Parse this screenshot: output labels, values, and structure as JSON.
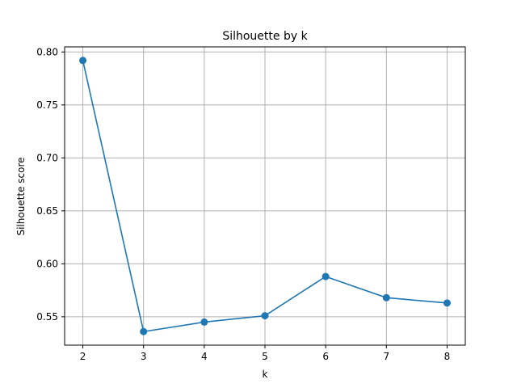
{
  "chart_data": {
    "type": "line",
    "title": "Silhouette by k",
    "xlabel": "k",
    "ylabel": "Silhouette score",
    "x": [
      2,
      3,
      4,
      5,
      6,
      7,
      8
    ],
    "series": [
      {
        "values": [
          0.792,
          0.536,
          0.545,
          0.551,
          0.588,
          0.568,
          0.563
        ],
        "color": "#1f77b4"
      }
    ],
    "xticks": [
      "2",
      "3",
      "4",
      "5",
      "6",
      "7",
      "8"
    ],
    "yticks": [
      "0.55",
      "0.60",
      "0.65",
      "0.70",
      "0.75",
      "0.80"
    ],
    "xlim": [
      1.7,
      8.3
    ],
    "ylim": [
      0.5232,
      0.8048
    ],
    "grid": true,
    "marker": "circle"
  }
}
